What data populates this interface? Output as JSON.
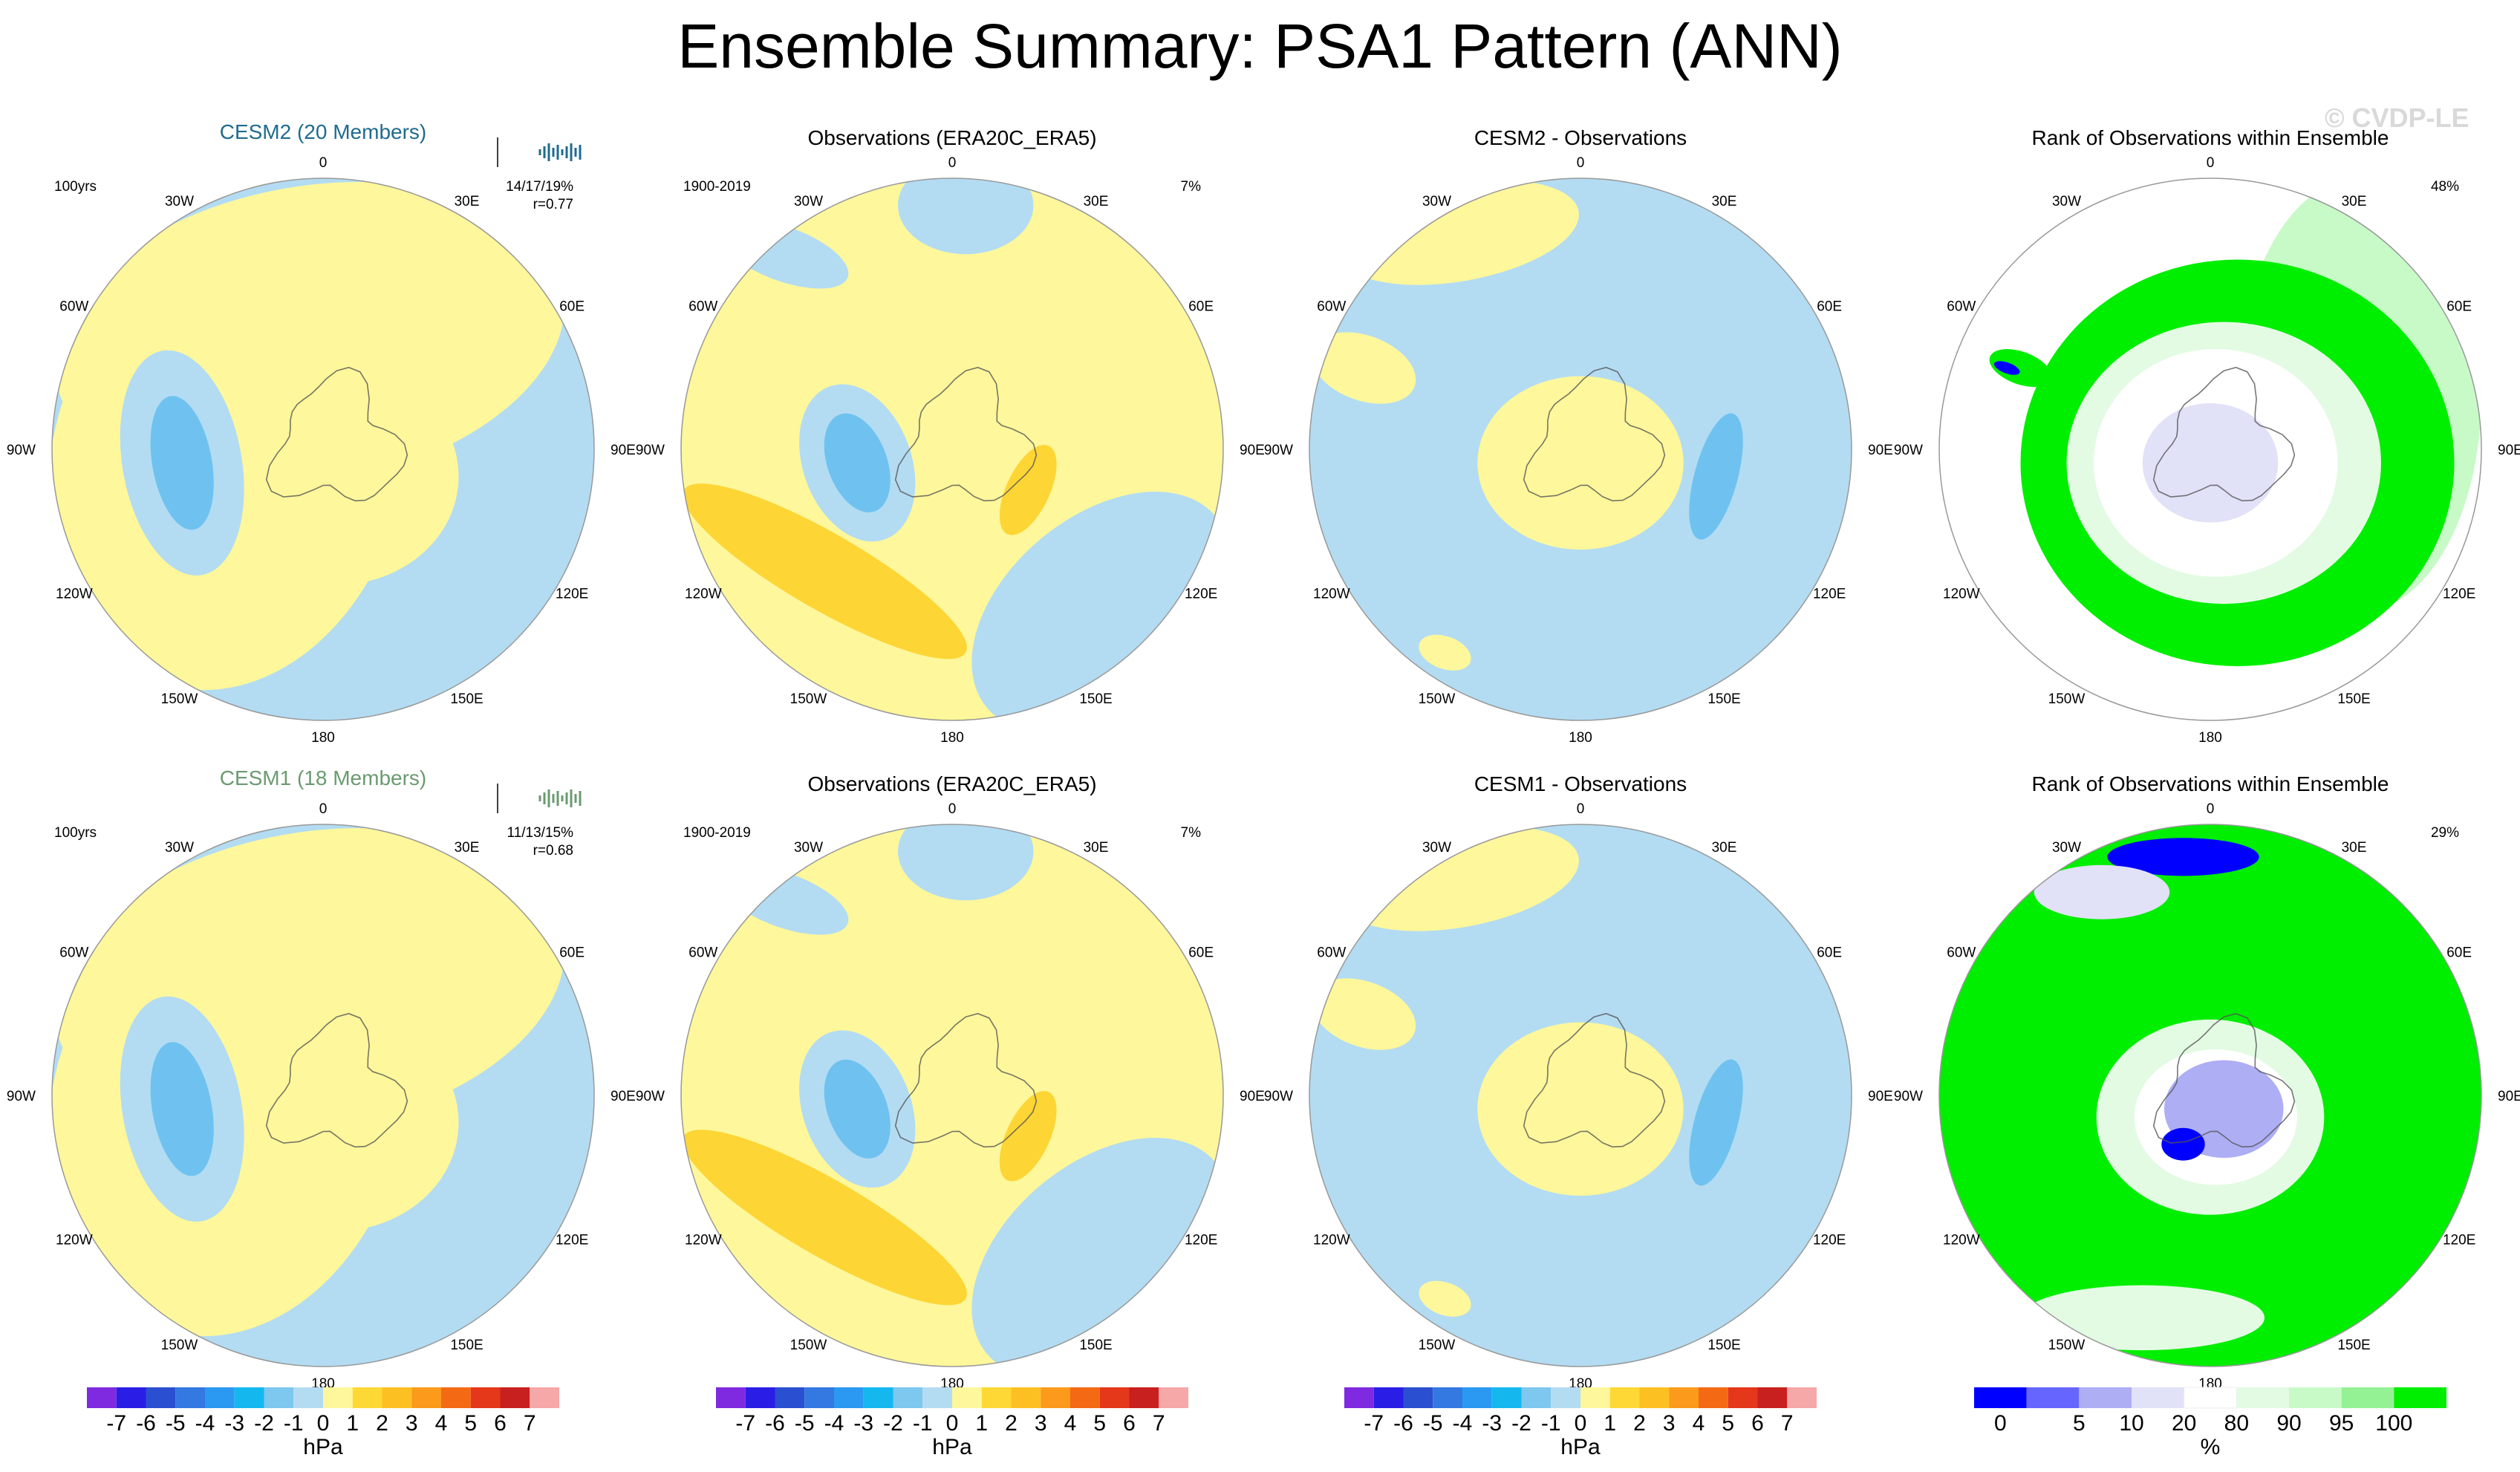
{
  "title": "Ensemble Summary: PSA1 Pattern (ANN)",
  "watermark": "© CVDP-LE",
  "colors": {
    "anom_levels": [
      "#7f2ae0",
      "#2a1ee6",
      "#2b4fd1",
      "#3478e2",
      "#2b99f1",
      "#14b8ef",
      "#7ec7ee",
      "#b3dcf2",
      "#fef79b",
      "#fed936",
      "#fdc023",
      "#fb9a1b",
      "#f46a14",
      "#e5371a",
      "#c8201e",
      "#f6a7a7"
    ],
    "rank_levels": [
      "#0000ff",
      "#6666ff",
      "#aeaef5",
      "#e1e1f7",
      "#ffffff",
      "#e3fbe3",
      "#c8fac8",
      "#94f294",
      "#00ee00"
    ],
    "neg1": "#b3dcf2",
    "neg2": "#6fc2f0",
    "pos1": "#fef79b",
    "pos2": "#fdd535",
    "cesm2_title": "#1f6b8f",
    "cesm1_title": "#6b9a70"
  },
  "lon_labels": [
    "0",
    "30E",
    "60E",
    "90E",
    "120E",
    "150E",
    "180",
    "150W",
    "120W",
    "90W",
    "60W",
    "30W"
  ],
  "rows": [
    {
      "panels": [
        {
          "title": "CESM2 (20 Members)",
          "title_color": "cesm2",
          "left_note": "100yrs",
          "right_lines": [
            "14/17/19%",
            "r=0.77"
          ],
          "type": "model"
        },
        {
          "title": "Observations (ERA20C_ERA5)",
          "left_note": "1900-2019",
          "right_lines": [
            "7%"
          ],
          "type": "obs"
        },
        {
          "title": "CESM2 - Observations",
          "left_note": "",
          "right_lines": [],
          "type": "diff"
        },
        {
          "title": "Rank of Observations within Ensemble",
          "left_note": "",
          "right_lines": [
            "48%"
          ],
          "type": "rank"
        }
      ]
    },
    {
      "panels": [
        {
          "title": "CESM1 (18 Members)",
          "title_color": "cesm1",
          "left_note": "100yrs",
          "right_lines": [
            "11/13/15%",
            "r=0.68"
          ],
          "type": "model"
        },
        {
          "title": "Observations (ERA20C_ERA5)",
          "left_note": "1900-2019",
          "right_lines": [
            "7%"
          ],
          "type": "obs"
        },
        {
          "title": "CESM1 - Observations",
          "left_note": "",
          "right_lines": [],
          "type": "diff"
        },
        {
          "title": "Rank of Observations within Ensemble",
          "left_note": "",
          "right_lines": [
            "29%"
          ],
          "type": "rank"
        }
      ]
    }
  ],
  "colorbars": {
    "anom": {
      "ticks": [
        "-7",
        "-6",
        "-5",
        "-4",
        "-3",
        "-2",
        "-1",
        "0",
        "1",
        "2",
        "3",
        "4",
        "5",
        "6",
        "7"
      ],
      "unit": "hPa"
    },
    "rank": {
      "ticks": [
        "0",
        "5",
        "10",
        "20",
        "80",
        "90",
        "95",
        "100"
      ],
      "tick_index": [
        1,
        2,
        3,
        4,
        5,
        6,
        7,
        8
      ],
      "unit": "%"
    }
  },
  "chart_data": [
    {
      "type": "heatmap",
      "title": "CESM2 (20 Members)",
      "units": "hPa",
      "levels": [
        -7,
        -6,
        -5,
        -4,
        -3,
        -2,
        -1,
        0,
        1,
        2,
        3,
        4,
        5,
        6,
        7
      ],
      "annotation": "100yrs",
      "stats": "14/17/19%",
      "pattern_correlation": 0.77
    },
    {
      "type": "heatmap",
      "title": "Observations (ERA20C_ERA5)",
      "units": "hPa",
      "period": "1900-2019",
      "percent_variance": "7%"
    },
    {
      "type": "heatmap",
      "title": "CESM2 - Observations",
      "units": "hPa"
    },
    {
      "type": "heatmap",
      "title": "Rank of Observations within Ensemble",
      "units": "%",
      "levels": [
        0,
        5,
        10,
        20,
        80,
        90,
        95,
        100
      ],
      "percent": "48%"
    },
    {
      "type": "heatmap",
      "title": "CESM1 (18 Members)",
      "units": "hPa",
      "annotation": "100yrs",
      "stats": "11/13/15%",
      "pattern_correlation": 0.68
    },
    {
      "type": "heatmap",
      "title": "Observations (ERA20C_ERA5)",
      "units": "hPa",
      "period": "1900-2019",
      "percent_variance": "7%"
    },
    {
      "type": "heatmap",
      "title": "CESM1 - Observations",
      "units": "hPa"
    },
    {
      "type": "heatmap",
      "title": "Rank of Observations within Ensemble",
      "units": "%",
      "percent": "29%"
    }
  ]
}
